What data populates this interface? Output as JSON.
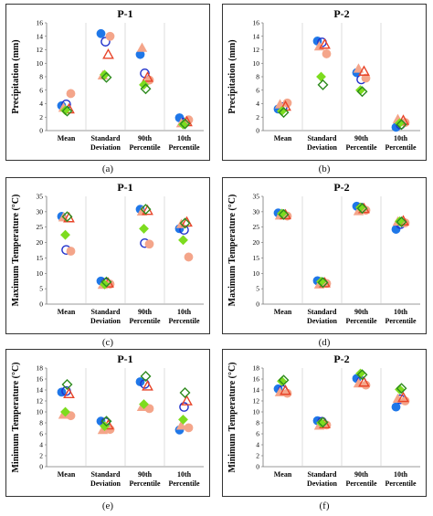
{
  "chart_data": [
    {
      "type": "scatter",
      "panel": "(a)",
      "title": "P-1",
      "ylabel": "Precipitation (mm)",
      "ylim": [
        0,
        16
      ],
      "yticks": [
        0,
        2,
        4,
        6,
        8,
        10,
        12,
        14,
        16
      ],
      "categories": [
        [
          "Mean"
        ],
        [
          "Standard",
          "Deviation"
        ],
        [
          "90th",
          "Percentile"
        ],
        [
          "10th",
          "Percentile"
        ]
      ],
      "series": [
        {
          "marker": "circle-filled",
          "color": "#1f77e8",
          "edge": "#1f77e8",
          "values": [
            3.7,
            14.4,
            11.3,
            1.9
          ]
        },
        {
          "marker": "circle-open",
          "color": "#2233cc",
          "edge": "#2233cc",
          "values": [
            3.9,
            13.2,
            8.5,
            1.2
          ]
        },
        {
          "marker": "circle-filled",
          "color": "#f4a58a",
          "edge": "#f4a58a",
          "values": [
            5.5,
            14.0,
            7.5,
            1.6
          ]
        },
        {
          "marker": "triangle-filled",
          "color": "#f4a58a",
          "edge": "#f4a58a",
          "values": [
            3.4,
            8.2,
            12.3,
            1.1
          ]
        },
        {
          "marker": "triangle-open",
          "color": "#e8452a",
          "edge": "#e8452a",
          "values": [
            3.2,
            11.3,
            7.9,
            1.3
          ]
        },
        {
          "marker": "diamond-filled",
          "color": "#7ddc1f",
          "edge": "#7ddc1f",
          "values": [
            3.0,
            8.3,
            6.8,
            0.9
          ]
        },
        {
          "marker": "diamond-open",
          "color": "#2e8b1e",
          "edge": "#2e8b1e",
          "values": [
            2.9,
            7.9,
            6.2,
            1.0
          ]
        }
      ]
    },
    {
      "type": "scatter",
      "panel": "(b)",
      "title": "P-2",
      "ylabel": "Precipitation (mm)",
      "ylim": [
        0,
        16
      ],
      "yticks": [
        0,
        2,
        4,
        6,
        8,
        10,
        12,
        14,
        16
      ],
      "categories": [
        [
          "Mean"
        ],
        [
          "Standard",
          "Deviation"
        ],
        [
          "90th",
          "Percentile"
        ],
        [
          "10th",
          "Percentile"
        ]
      ],
      "series": [
        {
          "marker": "circle-filled",
          "color": "#1f77e8",
          "edge": "#1f77e8",
          "values": [
            3.2,
            13.3,
            8.6,
            0.5
          ]
        },
        {
          "marker": "circle-open",
          "color": "#2233cc",
          "edge": "#2233cc",
          "values": [
            3.5,
            13.1,
            7.6,
            0.9
          ]
        },
        {
          "marker": "circle-filled",
          "color": "#f4a58a",
          "edge": "#f4a58a",
          "values": [
            4.1,
            11.4,
            7.8,
            1.2
          ]
        },
        {
          "marker": "triangle-filled",
          "color": "#f4a58a",
          "edge": "#f4a58a",
          "values": [
            3.9,
            12.5,
            9.2,
            1.7
          ]
        },
        {
          "marker": "triangle-open",
          "color": "#e8452a",
          "edge": "#e8452a",
          "values": [
            3.6,
            12.8,
            8.8,
            1.5
          ]
        },
        {
          "marker": "diamond-filled",
          "color": "#7ddc1f",
          "edge": "#7ddc1f",
          "values": [
            2.9,
            8.0,
            6.0,
            1.1
          ]
        },
        {
          "marker": "diamond-open",
          "color": "#2e8b1e",
          "edge": "#2e8b1e",
          "values": [
            2.7,
            6.8,
            5.8,
            0.9
          ]
        }
      ]
    },
    {
      "type": "scatter",
      "panel": "(c)",
      "title": "P-1",
      "ylabel": "Maximum Temperature (°C)",
      "ylim": [
        0,
        35
      ],
      "yticks": [
        0,
        5,
        10,
        15,
        20,
        25,
        30,
        35
      ],
      "categories": [
        [
          "Mean"
        ],
        [
          "Standard",
          "Deviation"
        ],
        [
          "90th",
          "Percentile"
        ],
        [
          "10th",
          "Percentile"
        ]
      ],
      "series": [
        {
          "marker": "circle-filled",
          "color": "#1f77e8",
          "edge": "#1f77e8",
          "values": [
            28.5,
            7.5,
            30.8,
            24.5
          ]
        },
        {
          "marker": "circle-open",
          "color": "#2233cc",
          "edge": "#2233cc",
          "values": [
            17.6,
            6.9,
            19.8,
            24.1
          ]
        },
        {
          "marker": "circle-filled",
          "color": "#f4a58a",
          "edge": "#f4a58a",
          "values": [
            17.2,
            6.5,
            19.5,
            15.3
          ]
        },
        {
          "marker": "triangle-filled",
          "color": "#f4a58a",
          "edge": "#f4a58a",
          "values": [
            28.2,
            6.3,
            30.1,
            26.0
          ]
        },
        {
          "marker": "triangle-open",
          "color": "#e8452a",
          "edge": "#e8452a",
          "values": [
            28.0,
            6.8,
            30.4,
            26.6
          ]
        },
        {
          "marker": "diamond-filled",
          "color": "#7ddc1f",
          "edge": "#7ddc1f",
          "values": [
            22.5,
            6.4,
            24.5,
            20.8
          ]
        },
        {
          "marker": "diamond-open",
          "color": "#2e8b1e",
          "edge": "#2e8b1e",
          "values": [
            28.4,
            7.2,
            30.8,
            26.3
          ]
        }
      ]
    },
    {
      "type": "scatter",
      "panel": "(d)",
      "title": "P-2",
      "ylabel": "Maximum Temperature (°C)",
      "ylim": [
        0,
        35
      ],
      "yticks": [
        0,
        5,
        10,
        15,
        20,
        25,
        30,
        35
      ],
      "categories": [
        [
          "Mean"
        ],
        [
          "Standard",
          "Deviation"
        ],
        [
          "90th",
          "Percentile"
        ],
        [
          "10th",
          "Percentile"
        ]
      ],
      "series": [
        {
          "marker": "circle-filled",
          "color": "#1f77e8",
          "edge": "#1f77e8",
          "values": [
            29.6,
            7.6,
            31.8,
            24.3
          ]
        },
        {
          "marker": "circle-open",
          "color": "#2233cc",
          "edge": "#2233cc",
          "values": [
            29.2,
            7.1,
            31.3,
            26.0
          ]
        },
        {
          "marker": "circle-filled",
          "color": "#f4a58a",
          "edge": "#f4a58a",
          "values": [
            28.6,
            6.7,
            30.5,
            26.4
          ]
        },
        {
          "marker": "triangle-filled",
          "color": "#f4a58a",
          "edge": "#f4a58a",
          "values": [
            28.8,
            6.4,
            30.2,
            26.8
          ]
        },
        {
          "marker": "triangle-open",
          "color": "#e8452a",
          "edge": "#e8452a",
          "values": [
            29.0,
            6.9,
            31.0,
            27.0
          ]
        },
        {
          "marker": "diamond-filled",
          "color": "#7ddc1f",
          "edge": "#7ddc1f",
          "values": [
            29.4,
            7.3,
            31.4,
            26.9
          ]
        },
        {
          "marker": "diamond-open",
          "color": "#2e8b1e",
          "edge": "#2e8b1e",
          "values": [
            29.1,
            7.0,
            31.1,
            26.7
          ]
        }
      ]
    },
    {
      "type": "scatter",
      "panel": "(e)",
      "title": "P-1",
      "ylabel": "Minimum Temperature (°C)",
      "ylim": [
        0,
        18
      ],
      "yticks": [
        0,
        2,
        4,
        6,
        8,
        10,
        12,
        14,
        16,
        18
      ],
      "categories": [
        [
          "Mean"
        ],
        [
          "Standard",
          "Deviation"
        ],
        [
          "90th",
          "Percentile"
        ],
        [
          "10th",
          "Percentile"
        ]
      ],
      "series": [
        {
          "marker": "circle-filled",
          "color": "#1f77e8",
          "edge": "#1f77e8",
          "values": [
            13.6,
            8.3,
            15.5,
            6.7
          ]
        },
        {
          "marker": "circle-open",
          "color": "#2233cc",
          "edge": "#2233cc",
          "values": [
            13.8,
            8.1,
            15.1,
            10.9
          ]
        },
        {
          "marker": "circle-filled",
          "color": "#f4a58a",
          "edge": "#f4a58a",
          "values": [
            9.3,
            6.8,
            10.6,
            7.1
          ]
        },
        {
          "marker": "triangle-filled",
          "color": "#f4a58a",
          "edge": "#f4a58a",
          "values": [
            9.5,
            6.7,
            10.9,
            7.5
          ]
        },
        {
          "marker": "triangle-open",
          "color": "#e8452a",
          "edge": "#e8452a",
          "values": [
            13.3,
            7.6,
            14.7,
            12.0
          ]
        },
        {
          "marker": "diamond-filled",
          "color": "#7ddc1f",
          "edge": "#7ddc1f",
          "values": [
            10.0,
            7.4,
            11.4,
            8.6
          ]
        },
        {
          "marker": "diamond-open",
          "color": "#2e8b1e",
          "edge": "#2e8b1e",
          "values": [
            15.0,
            8.3,
            16.5,
            13.5
          ]
        }
      ]
    },
    {
      "type": "scatter",
      "panel": "(f)",
      "title": "P-2",
      "ylabel": "Minimum Temperature (°C)",
      "ylim": [
        0,
        18
      ],
      "yticks": [
        0,
        2,
        4,
        6,
        8,
        10,
        12,
        14,
        16,
        18
      ],
      "categories": [
        [
          "Mean"
        ],
        [
          "Standard",
          "Deviation"
        ],
        [
          "90th",
          "Percentile"
        ],
        [
          "10th",
          "Percentile"
        ]
      ],
      "series": [
        {
          "marker": "circle-filled",
          "color": "#1f77e8",
          "edge": "#1f77e8",
          "values": [
            14.2,
            8.4,
            16.1,
            10.9
          ]
        },
        {
          "marker": "circle-open",
          "color": "#2233cc",
          "edge": "#2233cc",
          "values": [
            14.0,
            8.2,
            15.6,
            12.3
          ]
        },
        {
          "marker": "circle-filled",
          "color": "#f4a58a",
          "edge": "#f4a58a",
          "values": [
            13.4,
            7.6,
            14.9,
            12.0
          ]
        },
        {
          "marker": "triangle-filled",
          "color": "#f4a58a",
          "edge": "#f4a58a",
          "values": [
            13.6,
            7.5,
            15.2,
            12.4
          ]
        },
        {
          "marker": "triangle-open",
          "color": "#e8452a",
          "edge": "#e8452a",
          "values": [
            13.9,
            7.8,
            15.4,
            12.6
          ]
        },
        {
          "marker": "diamond-filled",
          "color": "#7ddc1f",
          "edge": "#7ddc1f",
          "values": [
            15.6,
            8.0,
            17.0,
            14.1
          ]
        },
        {
          "marker": "diamond-open",
          "color": "#2e8b1e",
          "edge": "#2e8b1e",
          "values": [
            15.8,
            8.1,
            16.8,
            14.3
          ]
        }
      ]
    }
  ]
}
